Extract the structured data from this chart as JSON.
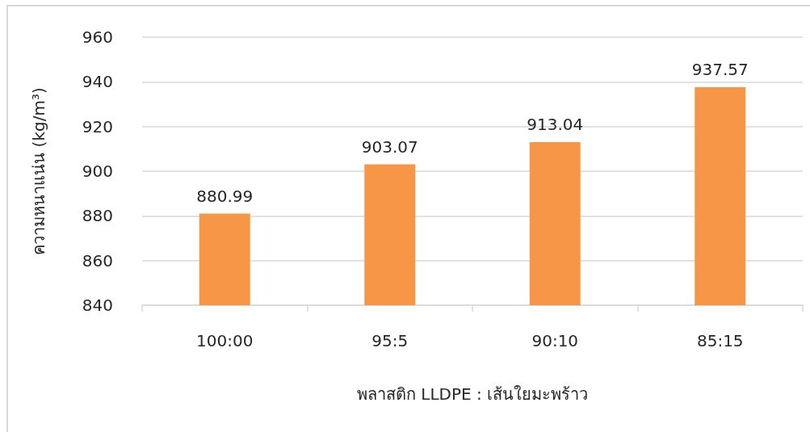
{
  "chart_data": {
    "type": "bar",
    "xlabel": "พลาสติก LLDPE : เส้นใยมะพร้าว",
    "ylabel": "ความหนาแน่น (kg/m³)",
    "categories": [
      "100:00",
      "95:5",
      "90:10",
      "85:15"
    ],
    "values": [
      880.99,
      903.07,
      913.04,
      937.57
    ],
    "color": "#f79646",
    "ylim": [
      840,
      960
    ],
    "yticks": [
      840,
      860,
      880,
      900,
      920,
      940,
      960
    ],
    "grid": "y",
    "data_labels": true
  }
}
